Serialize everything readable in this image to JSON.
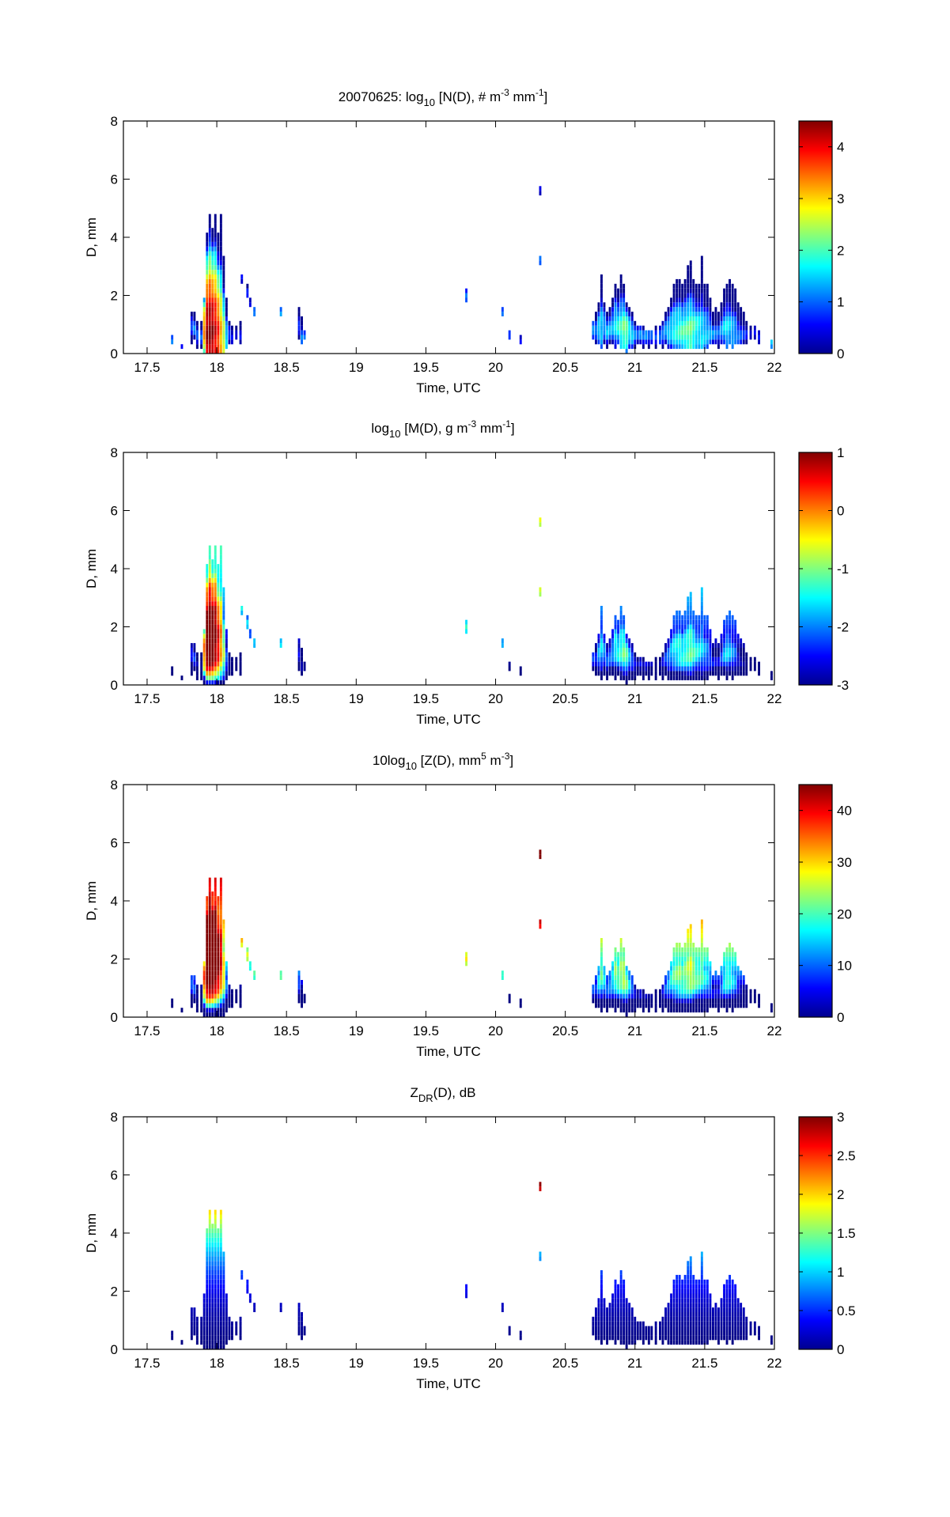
{
  "chart_data": {
    "type": "heatmap",
    "date": "20070625",
    "xlabel": "Time, UTC",
    "ylabel": "D, mm",
    "xlim": [
      17.33,
      22
    ],
    "ylim": [
      0,
      8
    ],
    "xticks": [
      17.5,
      18,
      18.5,
      19,
      19.5,
      20,
      20.5,
      21,
      21.5,
      22
    ],
    "xtick_labels": [
      "17.5",
      "18",
      "18.5",
      "19",
      "19.5",
      "20",
      "20.5",
      "21",
      "21.5",
      "22"
    ],
    "yticks": [
      0,
      2,
      4,
      6,
      8
    ],
    "ytick_labels": [
      "0",
      "2",
      "4",
      "6",
      "8"
    ],
    "time_bin_hours": 0.0167,
    "d_bin_mm": 0.16,
    "panels": [
      {
        "title_main": "20070625: log",
        "title_sub": "10",
        "title_rest": " [N(D), # m",
        "title_sup1": "-3",
        "title_mid": " mm",
        "title_sup2": "-1",
        "title_end": "]",
        "quantity": "logN",
        "clim": [
          0,
          4.5
        ],
        "cticks": [
          0,
          1,
          2,
          3,
          4
        ],
        "ctick_labels": [
          "0",
          "1",
          "2",
          "3",
          "4"
        ]
      },
      {
        "title_main": "log",
        "title_sub": "10",
        "title_rest": " [M(D), g m",
        "title_sup1": "-3",
        "title_mid": " mm",
        "title_sup2": "-1",
        "title_end": "]",
        "quantity": "logM",
        "clim": [
          -3,
          1
        ],
        "cticks": [
          -3,
          -2,
          -1,
          0,
          1
        ],
        "ctick_labels": [
          "-3",
          "-2",
          "-1",
          "0",
          "1"
        ]
      },
      {
        "title_main": "10log",
        "title_sub": "10",
        "title_rest": " [Z(D),  mm",
        "title_sup1": "5",
        "title_mid": " m",
        "title_sup2": "-3",
        "title_end": "]",
        "quantity": "dBZ",
        "clim": [
          0,
          45
        ],
        "cticks": [
          0,
          10,
          20,
          30,
          40
        ],
        "ctick_labels": [
          "0",
          "10",
          "20",
          "30",
          "40"
        ]
      },
      {
        "title_main": "Z",
        "title_sub": "DR",
        "title_rest": "(D), dB",
        "title_sup1": "",
        "title_mid": "",
        "title_sup2": "",
        "title_end": "",
        "quantity": "ZDR",
        "clim": [
          0,
          3
        ],
        "cticks": [
          0,
          0.5,
          1,
          1.5,
          2,
          2.5,
          3
        ],
        "ctick_labels": [
          "0",
          "0.5",
          "1",
          "1.5",
          "2",
          "2.5",
          "3"
        ]
      }
    ],
    "columns_note_fields": [
      "time_utc",
      "d_min_mm",
      "d_max_mm",
      "peak_logN",
      "peak_d_mm"
    ],
    "columns": [
      [
        17.68,
        0.4,
        0.52,
        1.2,
        0.45
      ],
      [
        17.75,
        0.2,
        0.3,
        0.6,
        0.25
      ],
      [
        17.82,
        0.4,
        1.3,
        1.0,
        1.0
      ],
      [
        17.84,
        0.5,
        1.3,
        1.2,
        0.9
      ],
      [
        17.86,
        0.3,
        1.0,
        1.0,
        0.6
      ],
      [
        17.89,
        0.3,
        1.0,
        1.0,
        0.6
      ],
      [
        17.91,
        0.1,
        1.9,
        3.4,
        0.9
      ],
      [
        17.93,
        0.1,
        4.1,
        4.4,
        0.9
      ],
      [
        17.95,
        0.1,
        4.7,
        4.5,
        0.9
      ],
      [
        17.97,
        0.1,
        4.3,
        4.4,
        0.9
      ],
      [
        17.99,
        0.1,
        4.7,
        4.1,
        0.9
      ],
      [
        18.01,
        0.1,
        4.1,
        3.8,
        0.8
      ],
      [
        18.03,
        0.1,
        4.7,
        3.2,
        0.7
      ],
      [
        18.05,
        0.1,
        3.3,
        2.6,
        0.6
      ],
      [
        18.07,
        0.3,
        1.9,
        1.6,
        0.6
      ],
      [
        18.09,
        0.4,
        1.1,
        1.0,
        0.7
      ],
      [
        18.11,
        0.4,
        0.9,
        0.6,
        0.6
      ],
      [
        18.14,
        0.5,
        0.9,
        0.5,
        0.6
      ],
      [
        18.17,
        0.35,
        1.1,
        0.5,
        0.6
      ],
      [
        18.18,
        2.5,
        2.7,
        0.6,
        2.6
      ],
      [
        18.22,
        2.0,
        2.3,
        0.6,
        2.1
      ],
      [
        18.24,
        1.6,
        1.9,
        0.6,
        1.7
      ],
      [
        18.27,
        1.3,
        1.5,
        1.3,
        1.4
      ],
      [
        18.46,
        1.3,
        1.5,
        1.3,
        1.4
      ],
      [
        18.59,
        0.5,
        1.5,
        0.8,
        0.9
      ],
      [
        18.61,
        0.4,
        1.2,
        1.2,
        0.6
      ],
      [
        18.63,
        0.5,
        0.7,
        1.0,
        0.6
      ],
      [
        19.79,
        1.9,
        2.1,
        1.0,
        2.0
      ],
      [
        20.05,
        1.3,
        1.5,
        1.2,
        1.4
      ],
      [
        20.1,
        0.55,
        0.7,
        0.8,
        0.6
      ],
      [
        20.18,
        0.35,
        0.52,
        0.6,
        0.45
      ],
      [
        20.32,
        3.1,
        3.3,
        1.0,
        3.2
      ],
      [
        20.32,
        5.55,
        5.75,
        0.6,
        5.65
      ],
      [
        20.7,
        0.6,
        1.0,
        1.4,
        0.8
      ],
      [
        20.72,
        0.45,
        1.3,
        1.3,
        0.8
      ],
      [
        20.74,
        0.45,
        1.7,
        1.6,
        0.9
      ],
      [
        20.76,
        0.3,
        2.7,
        1.5,
        1.0
      ],
      [
        20.78,
        0.45,
        1.7,
        1.4,
        1.0
      ],
      [
        20.8,
        0.3,
        1.3,
        1.5,
        0.8
      ],
      [
        20.82,
        0.45,
        1.5,
        1.4,
        0.9
      ],
      [
        20.84,
        0.45,
        1.9,
        1.4,
        1.0
      ],
      [
        20.86,
        0.3,
        2.3,
        1.6,
        1.1
      ],
      [
        20.88,
        0.45,
        2.1,
        1.8,
        1.0
      ],
      [
        20.9,
        0.3,
        2.7,
        1.9,
        0.9
      ],
      [
        20.92,
        0.2,
        2.3,
        2.2,
        0.9
      ],
      [
        20.94,
        0.1,
        1.7,
        2.2,
        0.8
      ],
      [
        20.96,
        0.3,
        1.5,
        1.8,
        0.8
      ],
      [
        20.98,
        0.2,
        1.3,
        1.6,
        0.7
      ],
      [
        21.0,
        0.3,
        1.1,
        1.3,
        0.7
      ],
      [
        21.02,
        0.45,
        0.9,
        1.0,
        0.7
      ],
      [
        21.04,
        0.45,
        0.9,
        1.2,
        0.7
      ],
      [
        21.06,
        0.3,
        0.9,
        1.0,
        0.6
      ],
      [
        21.08,
        0.45,
        0.8,
        1.2,
        0.6
      ],
      [
        21.1,
        0.2,
        0.7,
        1.0,
        0.6
      ],
      [
        21.12,
        0.45,
        0.7,
        1.1,
        0.6
      ],
      [
        21.15,
        0.3,
        0.9,
        0.8,
        0.6
      ],
      [
        21.18,
        0.45,
        0.9,
        1.2,
        0.6
      ],
      [
        21.2,
        0.3,
        1.1,
        1.3,
        0.7
      ],
      [
        21.22,
        0.45,
        1.3,
        1.5,
        0.8
      ],
      [
        21.24,
        0.3,
        1.5,
        1.6,
        0.8
      ],
      [
        21.26,
        0.3,
        1.9,
        1.6,
        0.9
      ],
      [
        21.28,
        0.2,
        2.3,
        1.7,
        0.9
      ],
      [
        21.3,
        0.3,
        2.5,
        1.8,
        0.9
      ],
      [
        21.32,
        0.3,
        2.5,
        1.9,
        0.9
      ],
      [
        21.34,
        0.3,
        2.3,
        2.0,
        0.8
      ],
      [
        21.36,
        0.2,
        2.5,
        2.0,
        0.8
      ],
      [
        21.38,
        0.3,
        2.9,
        2.1,
        0.8
      ],
      [
        21.4,
        0.3,
        3.1,
        2.2,
        0.8
      ],
      [
        21.42,
        0.3,
        2.5,
        2.0,
        0.9
      ],
      [
        21.44,
        0.3,
        2.3,
        1.8,
        0.9
      ],
      [
        21.46,
        0.2,
        2.3,
        1.7,
        0.9
      ],
      [
        21.48,
        0.3,
        3.3,
        1.6,
        0.8
      ],
      [
        21.5,
        0.2,
        2.3,
        1.5,
        0.8
      ],
      [
        21.52,
        0.3,
        2.3,
        1.4,
        0.8
      ],
      [
        21.54,
        0.45,
        1.9,
        1.3,
        0.8
      ],
      [
        21.56,
        0.45,
        1.3,
        1.2,
        0.7
      ],
      [
        21.58,
        0.45,
        1.5,
        1.0,
        0.7
      ],
      [
        21.6,
        0.3,
        1.3,
        1.0,
        0.7
      ],
      [
        21.62,
        0.45,
        1.7,
        1.2,
        0.8
      ],
      [
        21.64,
        0.45,
        2.1,
        1.5,
        0.9
      ],
      [
        21.66,
        0.3,
        2.3,
        1.6,
        0.9
      ],
      [
        21.68,
        0.45,
        2.5,
        1.5,
        0.9
      ],
      [
        21.7,
        0.3,
        2.3,
        1.4,
        0.8
      ],
      [
        21.72,
        0.45,
        2.1,
        1.3,
        0.8
      ],
      [
        21.74,
        0.45,
        1.7,
        1.1,
        0.7
      ],
      [
        21.76,
        0.45,
        1.5,
        1.0,
        0.7
      ],
      [
        21.78,
        0.45,
        1.3,
        0.8,
        0.7
      ],
      [
        21.8,
        0.45,
        1.1,
        0.6,
        0.7
      ],
      [
        21.83,
        0.6,
        0.9,
        0.5,
        0.7
      ],
      [
        21.86,
        0.6,
        0.9,
        0.5,
        0.7
      ],
      [
        21.89,
        0.45,
        0.7,
        0.5,
        0.6
      ],
      [
        21.98,
        0.3,
        0.45,
        1.3,
        0.4
      ]
    ]
  }
}
